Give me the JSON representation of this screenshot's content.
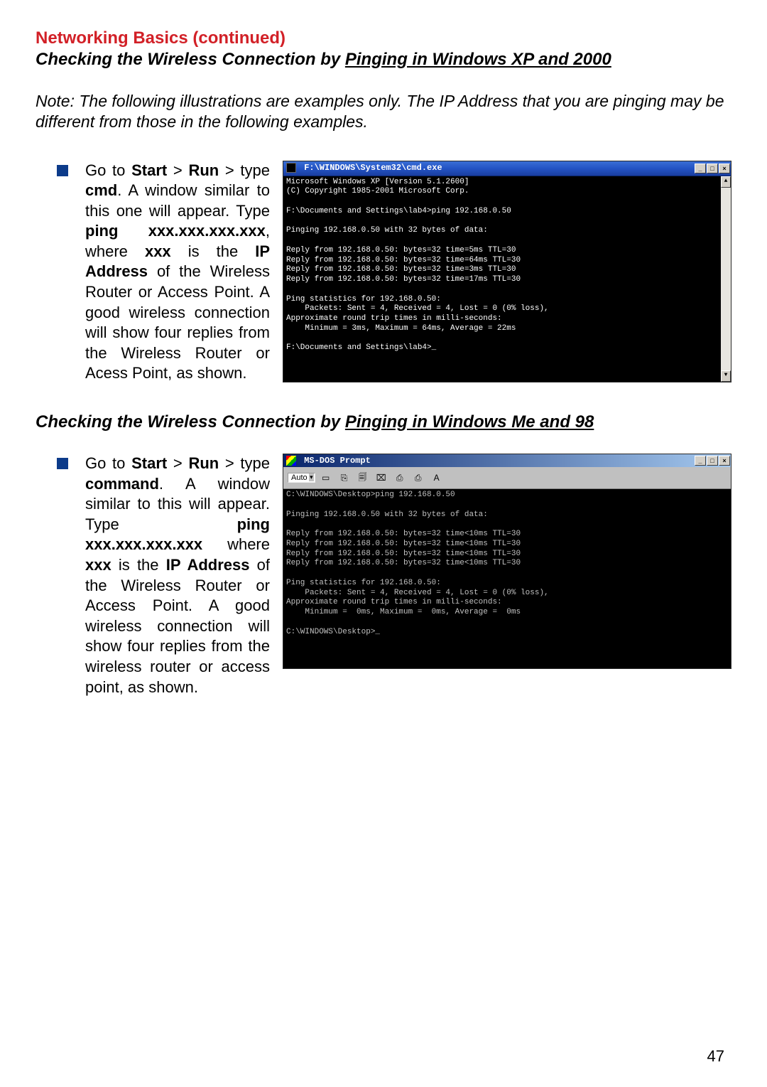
{
  "colors": {
    "header_red": "#d22027",
    "bullet_blue": "#0c3b8a",
    "xp_titlebar_start": "#3a6ed5",
    "xp_titlebar_end": "#1a3ea0",
    "win98_titlebar_start": "#08246b",
    "win98_titlebar_end": "#a6caf0",
    "win98_chrome": "#c0c0c0",
    "terminal_bg": "#000000",
    "terminal_fg_xp": "#ffffff",
    "terminal_fg_me": "#c0c0c0"
  },
  "header": "Networking Basics (continued)",
  "section1": {
    "title_prefix": "Checking the Wireless Connection by ",
    "title_under": "Pinging in Windows XP and 2000"
  },
  "note": "Note: The following illustrations are examples only. The IP Address that you are pinging may be different from those in the following examples.",
  "bullet1": {
    "p1": "Go to ",
    "b1": "Start",
    "s1": " > ",
    "b2": "Run",
    "s2": " > type ",
    "b3": "cmd",
    "s3": ". A window similar to this one will appear. Type ",
    "b4": "ping xxx.xxx.xxx.xxx",
    "s4": ", where ",
    "b5": "xxx",
    "s5": " is the ",
    "b6": "IP Address",
    "s6": " of the Wireless Router or Access Point. A good wireless connection will show four replies from the Wireless Router or Acess Point, as shown."
  },
  "cmd_xp": {
    "title": "F:\\WINDOWS\\System32\\cmd.exe",
    "lines": "Microsoft Windows XP [Version 5.1.2600]\n(C) Copyright 1985-2001 Microsoft Corp.\n\nF:\\Documents and Settings\\lab4>ping 192.168.0.50\n\nPinging 192.168.0.50 with 32 bytes of data:\n\nReply from 192.168.0.50: bytes=32 time=5ms TTL=30\nReply from 192.168.0.50: bytes=32 time=64ms TTL=30\nReply from 192.168.0.50: bytes=32 time=3ms TTL=30\nReply from 192.168.0.50: bytes=32 time=17ms TTL=30\n\nPing statistics for 192.168.0.50:\n    Packets: Sent = 4, Received = 4, Lost = 0 (0% loss),\nApproximate round trip times in milli-seconds:\n    Minimum = 3ms, Maximum = 64ms, Average = 22ms\n\nF:\\Documents and Settings\\lab4>_"
  },
  "section2": {
    "title_prefix": "Checking the Wireless Connection by ",
    "title_under": "Pinging in Windows Me and 98"
  },
  "bullet2": {
    "p1": "Go to ",
    "b1": "Start",
    "s1": " > ",
    "b2": "Run",
    "s2": " > type ",
    "b3": "command",
    "s3": ". A window similar to this will appear. Type ",
    "b4": "ping xxx.xxx.xxx.xxx",
    "s4": " where ",
    "b5": "xxx",
    "s5": " is the ",
    "b6": "IP Address",
    "s6": " of the Wireless Router or Access Point. A good wireless connection will show four replies from the wireless router or access point, as shown."
  },
  "cmd_me": {
    "title": "MS-DOS Prompt",
    "toolbar_label": "Auto",
    "lines": "C:\\WINDOWS\\Desktop>ping 192.168.0.50\n\nPinging 192.168.0.50 with 32 bytes of data:\n\nReply from 192.168.0.50: bytes=32 time<10ms TTL=30\nReply from 192.168.0.50: bytes=32 time<10ms TTL=30\nReply from 192.168.0.50: bytes=32 time<10ms TTL=30\nReply from 192.168.0.50: bytes=32 time<10ms TTL=30\n\nPing statistics for 192.168.0.50:\n    Packets: Sent = 4, Received = 4, Lost = 0 (0% loss),\nApproximate round trip times in milli-seconds:\n    Minimum =  0ms, Maximum =  0ms, Average =  0ms\n\nC:\\WINDOWS\\Desktop>_"
  },
  "page_number": "47",
  "win_buttons": {
    "min": "_",
    "max": "□",
    "close": "×"
  },
  "toolbar_icons": [
    "▭",
    "⎘",
    "🗐",
    "⌧",
    "⎙",
    "⎙",
    "A"
  ]
}
